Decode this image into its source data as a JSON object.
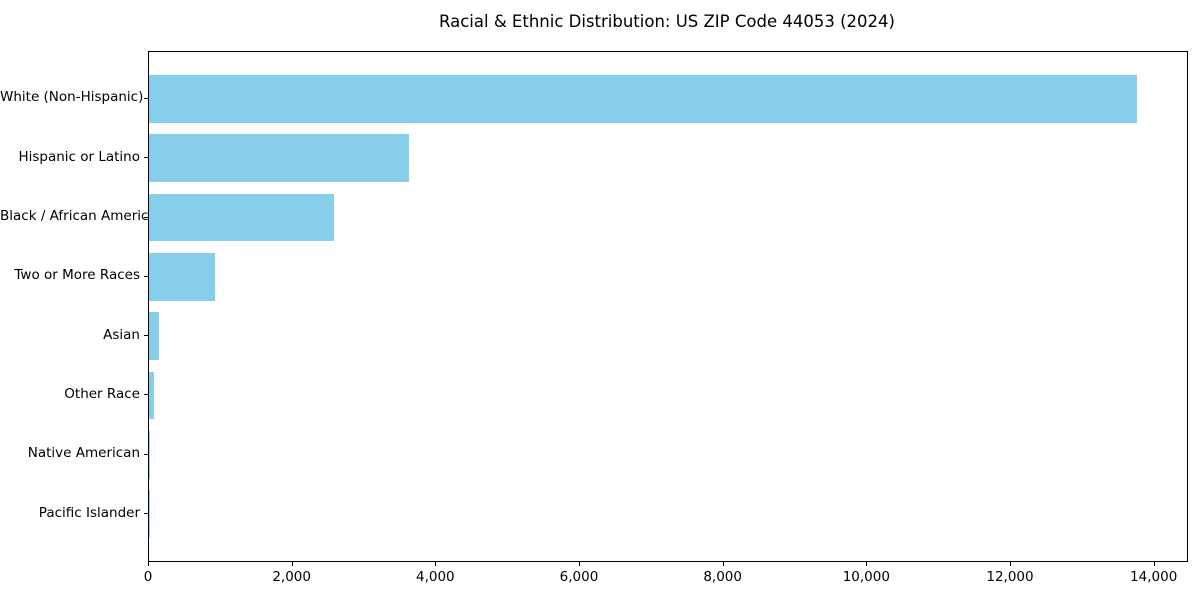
{
  "chart_data": {
    "type": "bar",
    "orientation": "horizontal",
    "title": "Racial & Ethnic Distribution: US ZIP Code 44053 (2024)",
    "categories": [
      "White (Non-Hispanic)",
      "Hispanic or Latino",
      "Black / African American",
      "Two or More Races",
      "Asian",
      "Other Race",
      "Native American",
      "Pacific Islander"
    ],
    "values": [
      13760,
      3620,
      2575,
      920,
      145,
      75,
      10,
      2
    ],
    "xlabel": "",
    "ylabel": "",
    "xlim": [
      0,
      14450
    ],
    "xticks": [
      0,
      2000,
      4000,
      6000,
      8000,
      10000,
      12000,
      14000
    ],
    "xtick_labels": [
      "0",
      "2,000",
      "4,000",
      "6,000",
      "8,000",
      "10,000",
      "12,000",
      "14,000"
    ],
    "bar_color": "#87CEEB",
    "text_color": "#000000",
    "spine_color": "#000000",
    "grid": false,
    "legend": "none"
  }
}
